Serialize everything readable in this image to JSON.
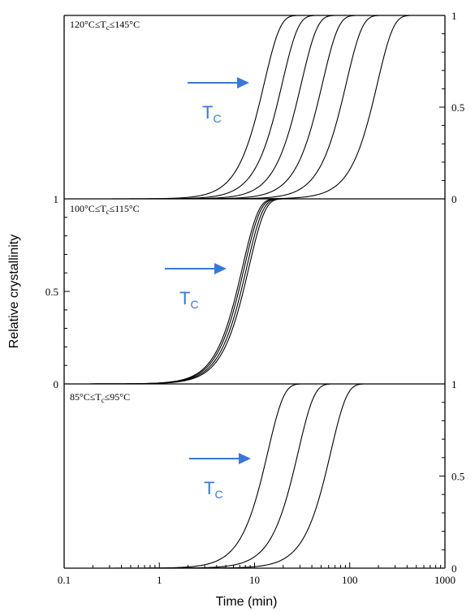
{
  "chart_data": {
    "type": "line",
    "xlabel": "Time (min)",
    "ylabel": "Relative crystallinity",
    "x_scale": "log",
    "xlim": [
      0.1,
      1000
    ],
    "x_ticks": [
      "0.1",
      "1",
      "10",
      "100",
      "1000"
    ],
    "panels": [
      {
        "label": "120°C≤T",
        "label_sub": "c",
        "label_tail": "≤145°C",
        "ylim": [
          0,
          1
        ],
        "y_axis_side": "right",
        "y_ticks": [
          "0",
          "0.5",
          "1"
        ],
        "arrow_label": "T",
        "arrow_label_sub": "C",
        "curves_half_time_min": [
          11,
          17,
          27,
          45,
          80,
          170
        ]
      },
      {
        "label": "100°C≤T",
        "label_sub": "c",
        "label_tail": "≤115°C",
        "ylim": [
          0,
          1
        ],
        "y_axis_side": "left",
        "y_ticks": [
          "0",
          "0.5",
          "1"
        ],
        "arrow_label": "T",
        "arrow_label_sub": "C",
        "curves_half_time_min": [
          6.5,
          6.8,
          7.2,
          7.6
        ]
      },
      {
        "label": "85°C≤T",
        "label_sub": "c",
        "label_tail": "≤95°C",
        "ylim": [
          0,
          1
        ],
        "y_axis_side": "right",
        "y_ticks": [
          "0",
          "0.5",
          "1"
        ],
        "arrow_label": "T",
        "arrow_label_sub": "C",
        "curves_half_time_min": [
          12,
          25,
          55
        ]
      }
    ]
  }
}
